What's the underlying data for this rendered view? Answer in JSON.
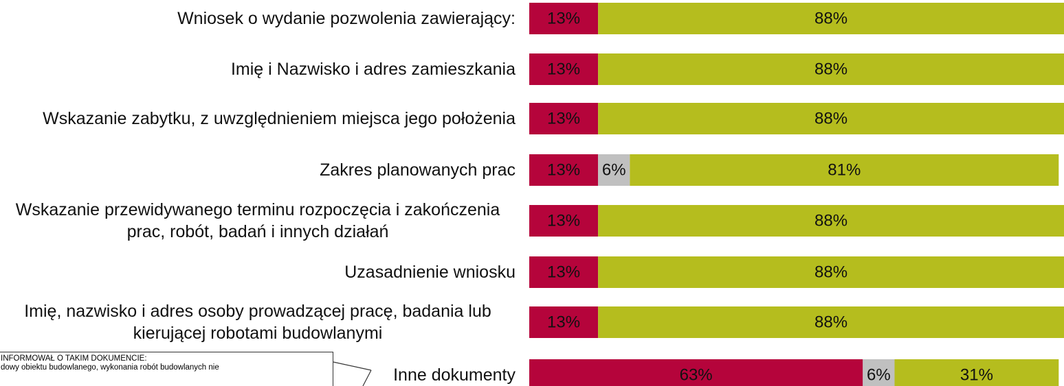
{
  "chart_data": {
    "type": "stacked-bar",
    "orientation": "horizontal",
    "categories": [
      "Wniosek o wydanie pozwolenia zawierający:",
      "Imię i Nazwisko i adres zamieszkania",
      "Wskazanie zabytku, z uwzględnieniem miejsca jego położenia",
      "Zakres planowanych prac",
      "Wskazanie przewidywanego terminu rozpoczęcia i zakończenia prac, robót, badań i innych działań",
      "Uzasadnienie wniosku",
      "Imię, nazwisko i adres osoby prowadzącej pracę, badania lub kierującej robotami budowlanymi",
      "Inne dokumenty"
    ],
    "series": [
      {
        "color": "#b5043b",
        "values": [
          13,
          13,
          13,
          13,
          13,
          13,
          13,
          63
        ],
        "value_labels": [
          "13%",
          "13%",
          "13%",
          "13%",
          "13%",
          "13%",
          "13%",
          "63%"
        ]
      },
      {
        "color": "#c0c0c0",
        "values": [
          null,
          null,
          null,
          6,
          null,
          null,
          null,
          6
        ],
        "value_labels": [
          null,
          null,
          null,
          "6%",
          null,
          null,
          null,
          "6%"
        ]
      },
      {
        "color": "#b5bd1e",
        "values": [
          88,
          88,
          88,
          81,
          88,
          88,
          88,
          31
        ],
        "value_labels": [
          "88%",
          "88%",
          "88%",
          "81%",
          "88%",
          "88%",
          "88%",
          "31%"
        ]
      }
    ],
    "xlim": [
      0,
      101
    ],
    "annotations": [
      "INFORMOWAŁ  O TAKIM DOKUMENCIE:",
      "dowy obiektu budowlanego, wykonania robót budowlanych nie"
    ]
  }
}
